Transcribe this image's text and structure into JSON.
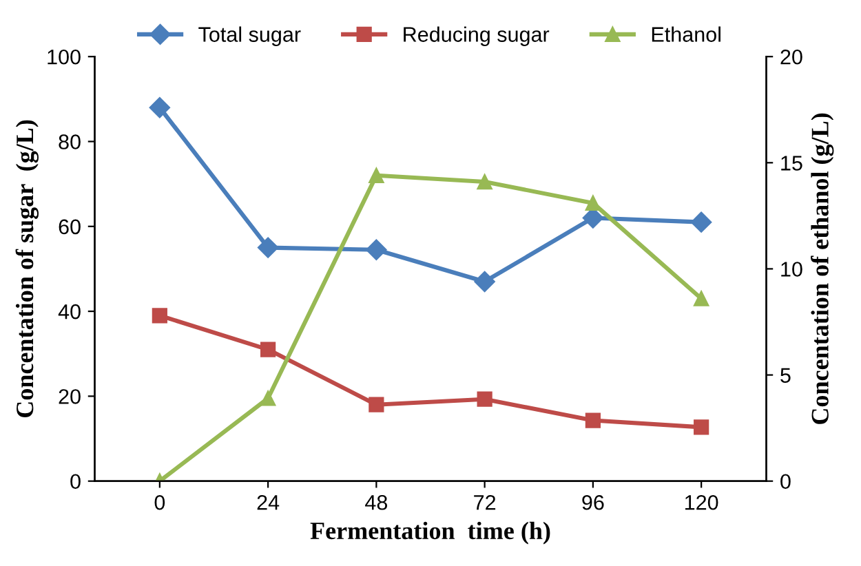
{
  "chart_data": {
    "type": "line",
    "xlabel": "Fermentation  time (h)",
    "ylabel": "Concentation of sugar  (g/L)",
    "y2label": "Concentation of ethanol (g/L)",
    "categories": [
      "0",
      "24",
      "48",
      "72",
      "96",
      "120"
    ],
    "series": [
      {
        "name": "Total sugar",
        "color": "#4a7ebb",
        "marker": "diamond",
        "values": [
          88,
          55,
          54.5,
          47,
          62,
          61
        ]
      },
      {
        "name": "Reducing sugar",
        "color": "#be4b48",
        "marker": "square",
        "values": [
          39,
          31,
          18,
          19.3,
          14.3,
          12.7
        ]
      },
      {
        "name": "Ethanol",
        "color": "#98b954",
        "marker": "triangle",
        "axis": "y2",
        "values": [
          0,
          3.9,
          14.4,
          14.1,
          13.1,
          8.6
        ]
      }
    ],
    "ylim": [
      0,
      100
    ],
    "yticks": [
      0,
      20,
      40,
      60,
      80,
      100
    ],
    "y2lim": [
      0,
      20
    ],
    "y2ticks": [
      0,
      5,
      10,
      15,
      20
    ],
    "grid": false,
    "legend": "top"
  }
}
